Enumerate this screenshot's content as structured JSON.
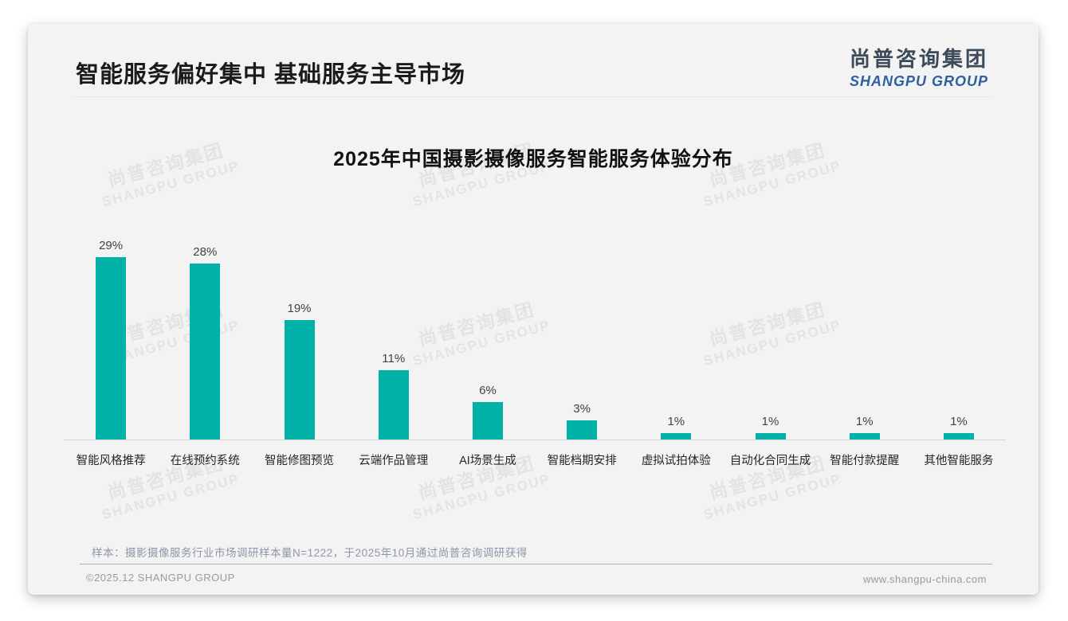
{
  "page": {
    "title": "智能服务偏好集中 基础服务主导市场",
    "logo": {
      "cn": "尚普咨询集团",
      "en": "SHANGPU GROUP"
    },
    "watermark": {
      "cn": "尚普咨询集团",
      "en": "SHANGPU GROUP"
    },
    "note": "样本：摄影摄像服务行业市场调研样本量N=1222，于2025年10月通过尚普咨询调研获得",
    "footer": {
      "left": "©2025.12 SHANGPU GROUP",
      "right": "www.shangpu-china.com"
    }
  },
  "chart_data": {
    "type": "bar",
    "title": "2025年中国摄影摄像服务智能服务体验分布",
    "categories": [
      "智能风格推荐",
      "在线预约系统",
      "智能修图预览",
      "云端作品管理",
      "AI场景生成",
      "智能档期安排",
      "虚拟试拍体验",
      "自动化合同生成",
      "智能付款提醒",
      "其他智能服务"
    ],
    "values": [
      29,
      28,
      19,
      11,
      6,
      3,
      1,
      1,
      1,
      1
    ],
    "unit": "%",
    "data_labels": true,
    "bar_color": "#00b1a8",
    "ylim": [
      0,
      30
    ],
    "grid": false,
    "legend": "none",
    "xlabel": "",
    "ylabel": ""
  }
}
